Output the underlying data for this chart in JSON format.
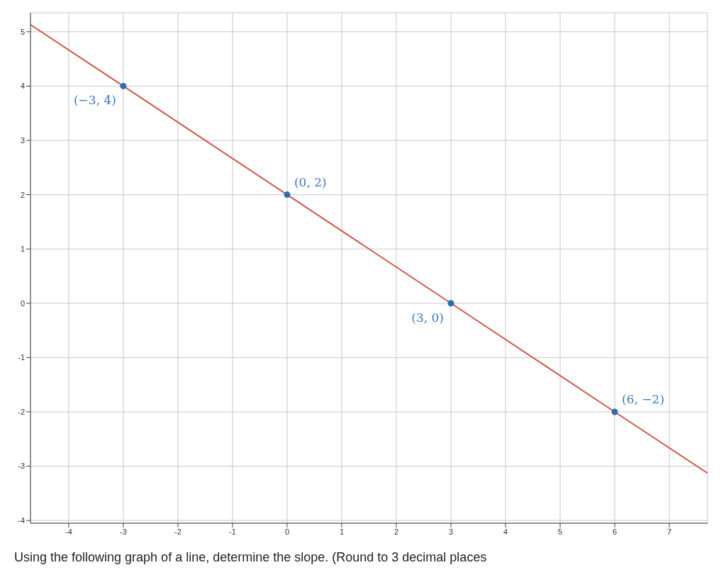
{
  "chart_data": {
    "type": "line",
    "x": [
      -4.7,
      -3,
      0,
      3,
      6,
      7.7
    ],
    "series": [
      {
        "color": "#d0574a",
        "marker": "none",
        "values": [
          5.13,
          4,
          2,
          0,
          -2,
          -3.13
        ]
      },
      {
        "type": "scatter",
        "color": "#2f6db5",
        "marker": "circle",
        "x": [
          -3,
          0,
          3,
          6
        ],
        "values": [
          4,
          2,
          0,
          -2
        ]
      }
    ],
    "xlim": [
      -4.7,
      7.7
    ],
    "ylim": [
      -4.05,
      5.35
    ],
    "xticks": [
      -4,
      -3,
      -2,
      -1,
      0,
      1,
      2,
      3,
      4,
      5,
      6,
      7
    ],
    "yticks": [
      -4,
      -3,
      -2,
      -1,
      0,
      1,
      2,
      3,
      4,
      5
    ],
    "grid": true,
    "line_style": "solid",
    "annotations": [
      {
        "text": "(−3, 4)",
        "x": -3,
        "y": 4
      },
      {
        "text": "(0, 2)",
        "x": 0,
        "y": 2
      },
      {
        "text": "(3, 0)",
        "x": 3,
        "y": 0
      },
      {
        "text": "(6, −2)",
        "x": 6,
        "y": -2
      },
      "Using the following graph of a line, determine the slope. (Round to 3 decimal places"
    ]
  }
}
